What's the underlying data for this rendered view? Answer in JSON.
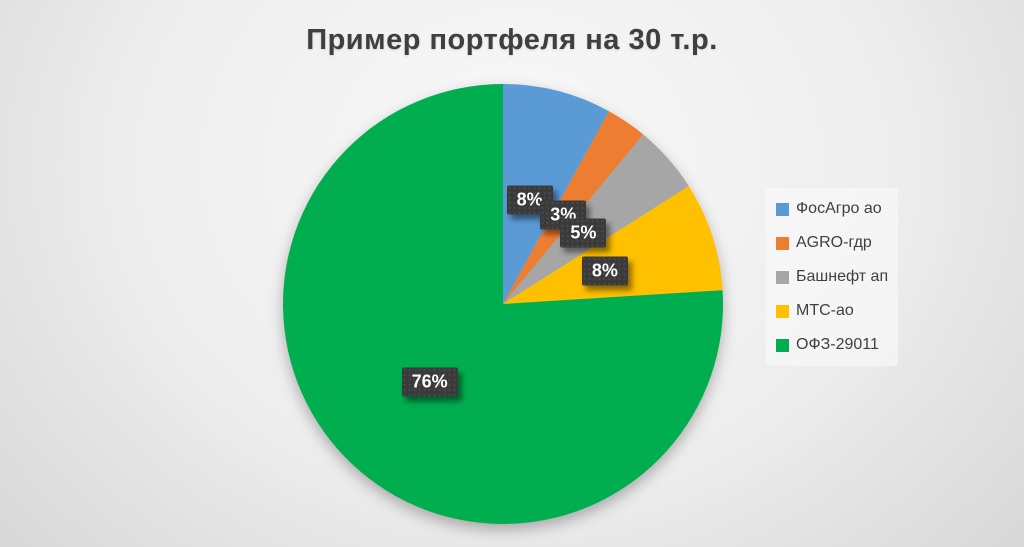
{
  "chart_data": {
    "type": "pie",
    "title": "Пример портфеля на 30 т.р.",
    "categories": [
      "ФосАгро ао",
      "AGRO-гдр",
      "Башнефт ап",
      "МТС-ао",
      "ОФЗ-29011"
    ],
    "values": [
      8,
      3,
      5,
      8,
      76
    ],
    "data_labels": [
      "8%",
      "3%",
      "5%",
      "8%",
      "76%"
    ],
    "colors": [
      "#5B9BD5",
      "#ED7D31",
      "#A6A6A6",
      "#FFC000",
      "#00AE50"
    ],
    "unit": "%",
    "start_angle_deg": 0,
    "direction": "clockwise",
    "legend_position": "right",
    "legend_items": [
      "ФосАгро ао",
      "AGRO-гдр",
      "Башнефт ап",
      "МТС-ао",
      "ОФЗ-29011"
    ],
    "title_color": "#3F3F3F",
    "label_text_color": "#FFFFFF",
    "label_bg_color": "#3A3A3A",
    "legend_text_color": "#404040",
    "background_edge_color": "#C6C6C6",
    "background_center_color": "#F9F9F9"
  }
}
